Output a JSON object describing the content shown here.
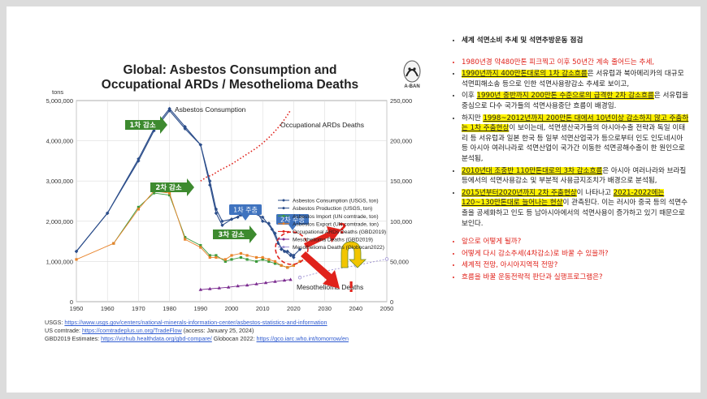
{
  "chart_title_line1": "Global: Asbestos Consumption and",
  "chart_title_line2": "Occupational ARDs / Mesothelioma Deaths",
  "logo_text": "A-BAN",
  "chart_data": {
    "type": "line",
    "y_left_unit": "tons",
    "y_left_ticks": [
      "5,000,000",
      "4,000,000",
      "3,000,000",
      "2,000,000",
      "1,000,000",
      "0"
    ],
    "y_right_ticks": [
      "250,000",
      "200,000",
      "150,000",
      "100,000",
      "50,000",
      "0"
    ],
    "x_ticks": [
      "1950",
      "1960",
      "1970",
      "1980",
      "1990",
      "2000",
      "2010",
      "2020",
      "2030",
      "2040",
      "2050"
    ],
    "xlim": [
      1950,
      2050
    ],
    "ylim_left": [
      0,
      5000000
    ],
    "ylim_right": [
      0,
      250000
    ],
    "series": [
      {
        "name": "Asbestos Consumption (USGS, ton)",
        "axis": "left",
        "color": "#2b4d8a",
        "x": [
          1950,
          1960,
          1970,
          1975,
          1980,
          1985,
          1990,
          1993,
          1995,
          1997,
          2000,
          2003,
          2005,
          2007,
          2010,
          2013,
          2015,
          2017,
          2019,
          2020
        ],
        "y": [
          1250000,
          2200000,
          3550000,
          4300000,
          4800000,
          4350000,
          3900000,
          3000000,
          2300000,
          2000000,
          2050000,
          2150000,
          2250000,
          2200000,
          2100000,
          1800000,
          1450000,
          1250000,
          1150000,
          1100000
        ]
      },
      {
        "name": "Asbestos Production (USGS, ton)",
        "axis": "left",
        "color": "#2b4d8a",
        "x": [
          1950,
          1960,
          1970,
          1975,
          1980,
          1985,
          1990,
          1993,
          1995,
          1997,
          2000,
          2002,
          2004,
          2006,
          2008,
          2010,
          2012,
          2014,
          2016,
          2018,
          2020,
          2022
        ],
        "y": [
          1250000,
          2200000,
          3500000,
          4250000,
          4750000,
          4300000,
          3900000,
          2900000,
          2200000,
          1900000,
          2050000,
          2100000,
          2300000,
          2200000,
          2250000,
          2000000,
          1950000,
          1700000,
          1300000,
          1250000,
          1150000,
          1300000
        ]
      },
      {
        "name": "Asbestos Import (UN comtrade, ton)",
        "axis": "left",
        "color": "#3c9a3c",
        "x": [
          1962,
          1970,
          1975,
          1980,
          1985,
          1990,
          1993,
          1995,
          1998,
          2000,
          2003,
          2005,
          2008,
          2010,
          2012,
          2014,
          2016,
          2018,
          2020,
          2022
        ],
        "y": [
          1450000,
          2350000,
          2700000,
          2650000,
          1600000,
          1400000,
          1150000,
          1150000,
          1000000,
          1050000,
          1100000,
          1050000,
          1000000,
          1050000,
          1000000,
          950000,
          900000,
          850000,
          900000,
          1000000
        ]
      },
      {
        "name": "Asbestos Export (UN comtrade, ton)",
        "axis": "left",
        "color": "#e8832a",
        "x": [
          1950,
          1962,
          1970,
          1975,
          1980,
          1985,
          1990,
          1993,
          1995,
          1998,
          2000,
          2003,
          2005,
          2008,
          2010,
          2012,
          2014,
          2016,
          2018,
          2020,
          2022
        ],
        "y": [
          1050000,
          1450000,
          2300000,
          2750000,
          2700000,
          1550000,
          1350000,
          1100000,
          1100000,
          1050000,
          1150000,
          1200000,
          1150000,
          1100000,
          1100000,
          1050000,
          1000000,
          900000,
          850000,
          900000,
          1000000
        ]
      },
      {
        "name": "Occupational ARDs Deaths (GBD2019)",
        "axis": "right",
        "color": "#e0221b",
        "x": [
          1990,
          1992,
          1994,
          1996,
          1998,
          2000,
          2002,
          2004,
          2006,
          2008,
          2010,
          2012,
          2014,
          2016,
          2018,
          2019
        ],
        "y": [
          150000,
          155000,
          158000,
          163000,
          167000,
          171000,
          176000,
          181000,
          186000,
          191000,
          197000,
          204000,
          212000,
          221000,
          232000,
          238000
        ]
      },
      {
        "name": "Mesothelioma Deaths (GBD2019)",
        "axis": "right",
        "color": "#7a2a8f",
        "x": [
          1990,
          1993,
          1996,
          1999,
          2002,
          2005,
          2008,
          2011,
          2014,
          2017,
          2019
        ],
        "y": [
          15000,
          16000,
          17000,
          18000,
          19500,
          20500,
          22000,
          23500,
          25000,
          26500,
          27500
        ]
      },
      {
        "name": "Mesothelioma Deaths (Globocan2022)",
        "axis": "right",
        "color": "#9b8fd1",
        "x": [
          2022,
          2030,
          2040,
          2050
        ],
        "y": [
          30000,
          38000,
          45000,
          53000
        ]
      }
    ],
    "annotations": {
      "consumption_label": "Asbestos Consumption",
      "ards_label": "Occupational ARDs Deaths",
      "meso_label": "Mesothelioma Deaths",
      "arrow_decrease_1": "1차 감소",
      "arrow_decrease_2": "2차 감소",
      "arrow_decrease_3": "3차 감소",
      "stall_1": "1차 주춤",
      "stall_2": "2차 주춤",
      "question_mark": "?",
      "exclamation_mark": "!"
    }
  },
  "sources": {
    "usgs_label": "USGS: ",
    "usgs_url": "https://www.usgs.gov/centers/national-minerals-information-center/asbestos-statistics-and-information",
    "comtrade_label": "US comtrade: ",
    "comtrade_url": "https://comtradeplus.un.org/TradeFlow",
    "comtrade_access": "  (access: January 25, 2024)",
    "gbd_label": "GBD2019 Estimates: ",
    "gbd_url": "https://vizhub.healthdata.org/gbd-compare/",
    "globocan_label": "  Globocan 2022: ",
    "globocan_url": "https://gco.iarc.who.int/tomorrow/en"
  },
  "right_panel": {
    "heading": "세계 석면소비 추세 및 석면추방운동 점검",
    "b1": "1980년경 약480만톤 피크찍고 이후 50년간 계속 줄어드는 추세,",
    "b2_hl": "1990년까지 400만톤대로의 1차 감소흐름",
    "b2_rest": "은 서유럽과 북아메리카의 대규모 석면피해소송 등으로 인한 석면사용량감소 추세로 보이고,",
    "b3_pre": "이후 ",
    "b3_hl": "1990년 중반까지 200만톤 수준으로의 급격한 2차 감소흐름",
    "b3_rest": "은 서유럽을 중심으로 다수 국가들의 석면사용중단 흐름이 배경임.",
    "b4_pre": "하지만 ",
    "b4_hl": "1998~2012년까지 200만톤 대에서 10년이상 감소하지 않고 주춤하는 1차 주춤현상",
    "b4_rest": "이 보이는데, 석면생산국가들의 아시아수출 전략과 독일 이태리 등 서유럽과 일본 한국 등 일부 석면산업국가 등으로부터 인도 인도네시아 등 아시아 여러나라로 석면산업이 국가간 이동한 석면공해수출이 한 원인으로 분석됨,",
    "b5_hl": "2010년대 조중반 110만톤대로의 3차 감소흐름",
    "b5_rest": "은 아시아 여러나라와 브라질 등에서의 석면사용감소 및 부분적 사용금지조치가 배경으로 분석됨,",
    "b6_hl1": "2015년부터2020년까지 2차 주춤현상",
    "b6_mid": "이 나타나고 ",
    "b6_hl2": "2021-2022에는 120~130만톤대로 늘어나는 현상",
    "b6_rest": "이 관측된다. 이는 러시아 중국 등의 석면수출을 공세화하고 인도 등 남아시아에서의 석면사용이 증가하고 있기 때문으로 보인다.",
    "questions": [
      "앞으로 어떻게 될까?",
      "어떻게 다시 감소추세(4차감소)로 바꿀 수 있을까?",
      "세계적 전망, 아시아지역적 전망?",
      "흐름을 바꿀 운동전략적 판단과 실행프로그램은?"
    ]
  }
}
